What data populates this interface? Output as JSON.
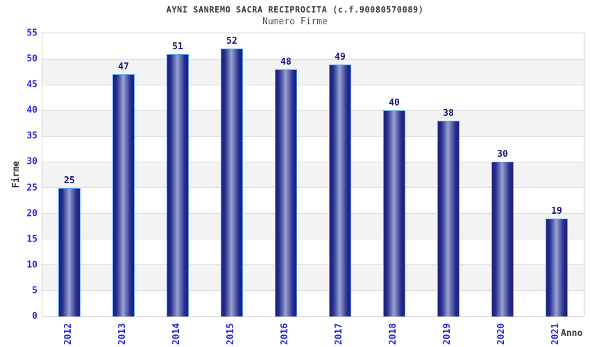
{
  "chart_data": {
    "type": "bar",
    "title": "AYNI SANREMO SACRA RECIPROCITA (c.f.90080570089)",
    "subtitle": "Numero Firme",
    "xlabel": "Anno",
    "ylabel": "Firme",
    "categories": [
      "2012",
      "2013",
      "2014",
      "2015",
      "2016",
      "2017",
      "2018",
      "2019",
      "2020",
      "2021"
    ],
    "values": [
      25,
      47,
      51,
      52,
      48,
      49,
      40,
      38,
      30,
      19
    ],
    "ylim": [
      0,
      55
    ],
    "ytick_step": 5,
    "yticks": [
      0,
      5,
      10,
      15,
      20,
      25,
      30,
      35,
      40,
      45,
      50,
      55
    ],
    "grid": "horizontal gridlines every 5 units with alternating white/gray bands",
    "legend": "none",
    "bar_value_labels": true
  },
  "colors": {
    "bar_dark": "#1b1f80",
    "bar_light": "#9aa3d2",
    "bar_border": "#53a0ef",
    "tick_blue": "#2828dd",
    "value_label": "#15157a",
    "band_gray": "#f3f3f3",
    "grid_line": "#dcdcdc",
    "plot_border": "#c9c9c9",
    "title_text": "#3c3c3c"
  }
}
